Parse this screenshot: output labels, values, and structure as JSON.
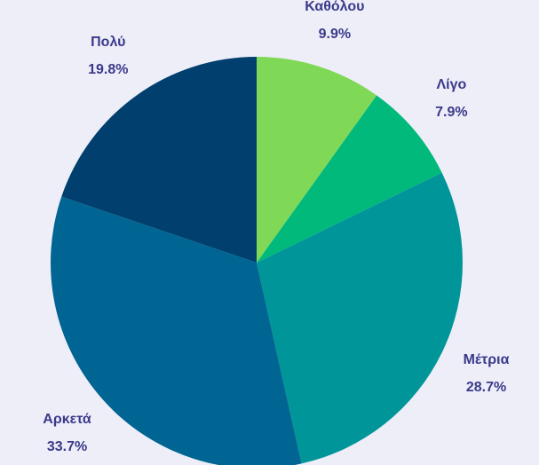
{
  "chart_data": {
    "type": "pie",
    "categories": [
      "Καθόλου",
      "Λίγο",
      "Μέτρια",
      "Αρκετά",
      "Πολύ"
    ],
    "values": [
      9.9,
      7.9,
      28.7,
      33.7,
      19.8
    ],
    "value_labels": [
      "9.9%",
      "7.9%",
      "28.7%",
      "33.7%",
      "19.8%"
    ],
    "colors": [
      "#7fd957",
      "#00b97b",
      "#009599",
      "#006592",
      "#003f6e"
    ]
  }
}
